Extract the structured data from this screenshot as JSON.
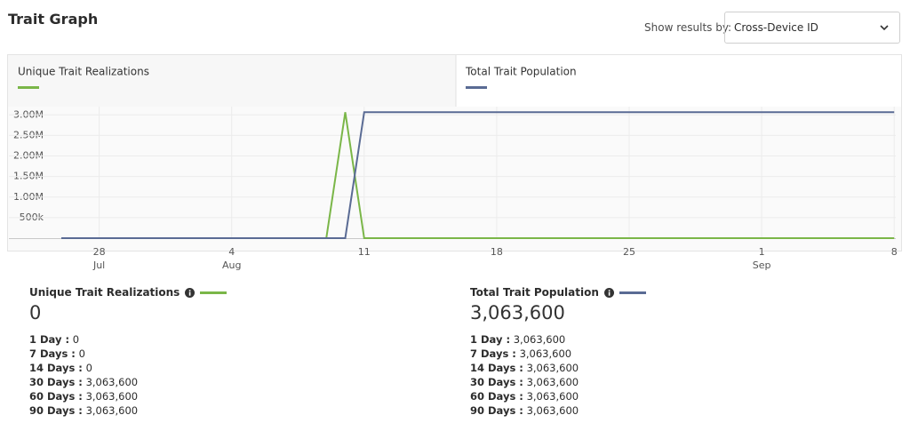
{
  "header": {
    "title": "Trait Graph",
    "filter_label": "Show results by:",
    "filter_value": "Cross-Device ID"
  },
  "chart_data": {
    "type": "line",
    "categories": [
      null,
      null,
      "28",
      null,
      null,
      null,
      null,
      null,
      null,
      "4",
      null,
      null,
      null,
      null,
      null,
      null,
      "11",
      null,
      null,
      null,
      null,
      null,
      null,
      "18",
      null,
      null,
      null,
      null,
      null,
      null,
      "25",
      null,
      null,
      null,
      null,
      null,
      null,
      "1",
      null,
      null,
      null,
      null,
      null,
      null,
      "8"
    ],
    "months": [
      null,
      null,
      "Jul",
      null,
      null,
      null,
      null,
      null,
      null,
      "Aug",
      null,
      null,
      null,
      null,
      null,
      null,
      null,
      null,
      null,
      null,
      null,
      null,
      null,
      null,
      null,
      null,
      null,
      null,
      null,
      null,
      null,
      null,
      null,
      null,
      null,
      null,
      null,
      "Sep",
      null,
      null,
      null,
      null,
      null,
      null,
      null
    ],
    "series": [
      {
        "name": "Unique Trait Realizations",
        "color": "#7ab648",
        "values": [
          0,
          0,
          0,
          0,
          0,
          0,
          0,
          0,
          0,
          0,
          0,
          0,
          0,
          0,
          0,
          3063600,
          0,
          0,
          0,
          0,
          0,
          0,
          0,
          0,
          0,
          0,
          0,
          0,
          0,
          0,
          0,
          0,
          0,
          0,
          0,
          0,
          0,
          0,
          0,
          0,
          0,
          0,
          0,
          0,
          0
        ]
      },
      {
        "name": "Total Trait Population",
        "color": "#5a6b94",
        "values": [
          0,
          0,
          0,
          0,
          0,
          0,
          0,
          0,
          0,
          0,
          0,
          0,
          0,
          0,
          0,
          0,
          3063600,
          3063600,
          3063600,
          3063600,
          3063600,
          3063600,
          3063600,
          3063600,
          3063600,
          3063600,
          3063600,
          3063600,
          3063600,
          3063600,
          3063600,
          3063600,
          3063600,
          3063600,
          3063600,
          3063600,
          3063600,
          3063600,
          3063600,
          3063600,
          3063600,
          3063600,
          3063600,
          3063600,
          3063600
        ]
      }
    ],
    "ylim": [
      0,
      3200000
    ],
    "yticks": [
      {
        "value": 500000,
        "label": "500k"
      },
      {
        "value": 1000000,
        "label": "1.00M"
      },
      {
        "value": 1500000,
        "label": "1.50M"
      },
      {
        "value": 2000000,
        "label": "2.00M"
      },
      {
        "value": 2500000,
        "label": "2.50M"
      },
      {
        "value": 3000000,
        "label": "3.00M"
      }
    ],
    "grid": true
  },
  "summary": [
    {
      "title": "Unique Trait Realizations",
      "total": "0",
      "rows": [
        [
          "1 Day :",
          "0"
        ],
        [
          "7 Days :",
          "0"
        ],
        [
          "14 Days :",
          "0"
        ],
        [
          "30 Days :",
          "3,063,600"
        ],
        [
          "60 Days :",
          "3,063,600"
        ],
        [
          "90 Days :",
          "3,063,600"
        ]
      ]
    },
    {
      "title": "Total Trait Population",
      "total": "3,063,600",
      "rows": [
        [
          "1 Day :",
          "3,063,600"
        ],
        [
          "7 Days :",
          "3,063,600"
        ],
        [
          "14 Days :",
          "3,063,600"
        ],
        [
          "30 Days :",
          "3,063,600"
        ],
        [
          "60 Days :",
          "3,063,600"
        ],
        [
          "90 Days :",
          "3,063,600"
        ]
      ]
    }
  ]
}
